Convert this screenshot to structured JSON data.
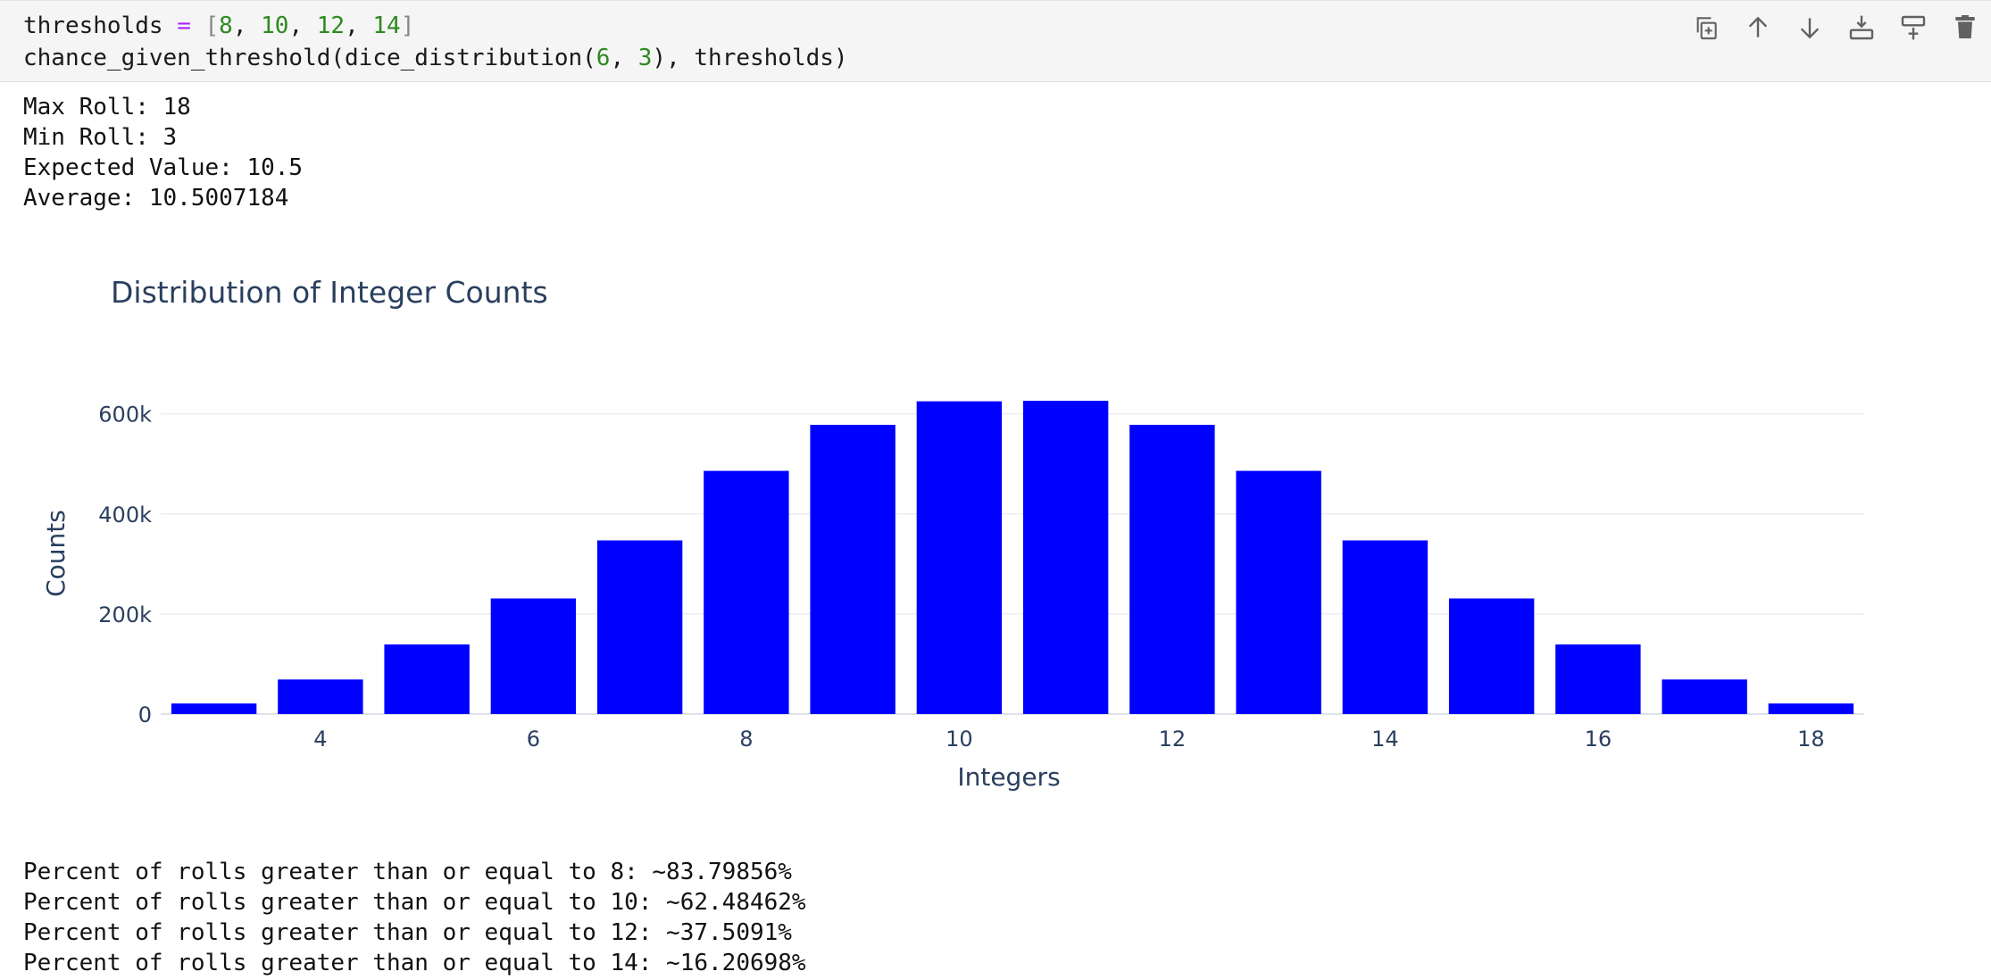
{
  "code_cell": {
    "line1": {
      "name": "thresholds",
      "op": "=",
      "open": "[",
      "items": [
        "8",
        "10",
        "12",
        "14"
      ],
      "close": "]"
    },
    "line2": {
      "func": "chance_given_threshold(dice_distribution(",
      "arg1": "6",
      "sep": ", ",
      "arg2": "3",
      "rest": "), thresholds)"
    }
  },
  "toolbar": {
    "buttons": [
      {
        "icon": "duplicate-icon"
      },
      {
        "icon": "arrow-up-icon"
      },
      {
        "icon": "arrow-down-icon"
      },
      {
        "icon": "insert-above-icon"
      },
      {
        "icon": "insert-below-icon"
      },
      {
        "icon": "trash-icon"
      }
    ]
  },
  "output_stats": {
    "max_roll": "Max Roll: 18",
    "min_roll": "Min Roll: 3",
    "expected_value": "Expected Value: 10.5",
    "average": "Average: 10.5007184"
  },
  "chart_data": {
    "type": "bar",
    "title": "Distribution of Integer Counts",
    "xlabel": "Integers",
    "ylabel": "Counts",
    "x": [
      3,
      4,
      5,
      6,
      7,
      8,
      9,
      10,
      11,
      12,
      13,
      14,
      15,
      16,
      17,
      18
    ],
    "values": [
      21000,
      69000,
      139000,
      231000,
      347000,
      486000,
      578000,
      625000,
      626000,
      578000,
      486000,
      347000,
      231000,
      139000,
      69000,
      21000
    ],
    "xticks": [
      4,
      6,
      8,
      10,
      12,
      14,
      16,
      18
    ],
    "yticks": [
      0,
      200000,
      400000,
      600000
    ],
    "ytick_labels": [
      "0",
      "200k",
      "400k",
      "600k"
    ],
    "ylim": [
      0,
      660000
    ],
    "bar_color": "#0000ff",
    "grid": true
  },
  "percent_lines": [
    "Percent of rolls greater than or equal to 8: ~83.79856%",
    "Percent of rolls greater than or equal to 10: ~62.48462%",
    "Percent of rolls greater than or equal to 12: ~37.5091%",
    "Percent of rolls greater than or equal to 14: ~16.20698%"
  ]
}
